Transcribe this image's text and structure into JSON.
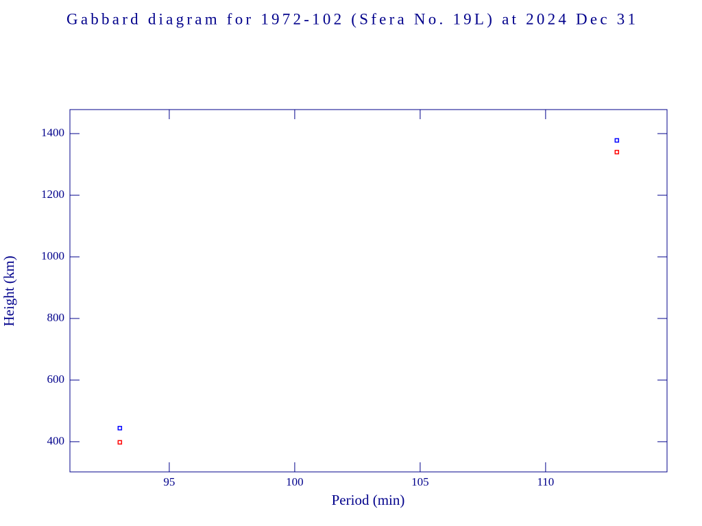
{
  "chart_data": {
    "type": "scatter",
    "title": "Gabbard diagram for 1972-102 (Sfera No. 19L) at 2024 Dec 31",
    "x_label": "Period (min)",
    "y_label": "Height (km)",
    "xlim": [
      91.04,
      114.84
    ],
    "xticks": [
      95,
      100,
      105,
      110
    ],
    "ylim": [
      302,
      1478
    ],
    "yticks": [
      400,
      600,
      800,
      1000,
      1200,
      1400
    ],
    "series": [
      {
        "color": "#0000ff",
        "x": [
          93.03,
          112.84
        ],
        "values": [
          444,
          1378
        ]
      },
      {
        "color": "#ff0000",
        "x": [
          93.03,
          112.84
        ],
        "values": [
          398,
          1340
        ]
      }
    ]
  }
}
